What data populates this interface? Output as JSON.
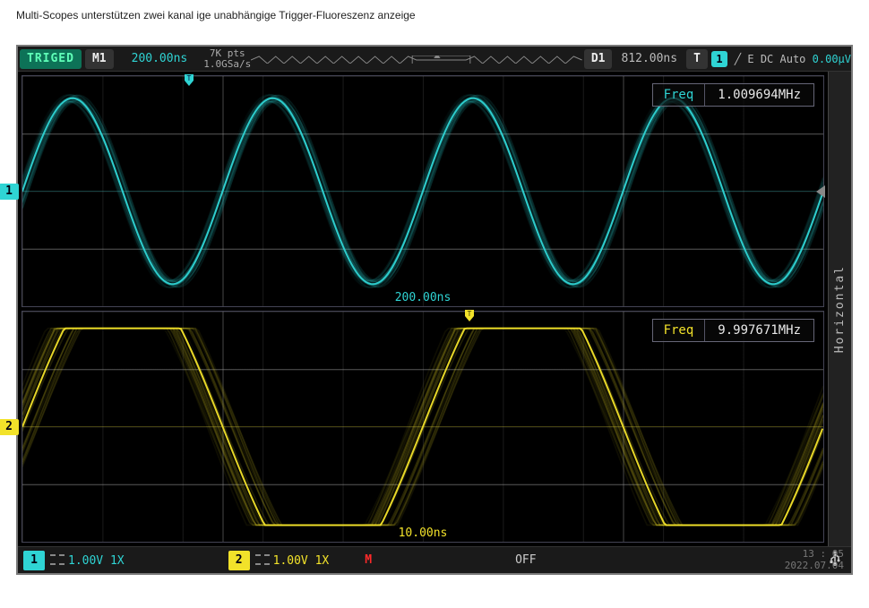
{
  "caption": "Multi-Scopes unterstützen zwei kanal ige unabhängige Trigger-Fluoreszenz anzeige",
  "topbar": {
    "status": "TRIGED",
    "mem_label": "M1",
    "timebase": "200.00ns",
    "acq_pts": "7K pts",
    "acq_rate": "1.0GSa/s",
    "delay_label": "D1",
    "delay_value": "812.00ns",
    "trig_T": "T",
    "trig_src_ch": "1",
    "trig_info": "╱ E DC Auto",
    "trig_level": "0.00µV"
  },
  "ch1": {
    "index": "1",
    "color": "#2fd4d4",
    "timebase_label": "200.00ns",
    "meas_key": "Freq",
    "meas_val": "1.009694MHz",
    "wave": {
      "type": "sine",
      "cycles": 4,
      "amplitude": 0.85,
      "phosphor_traces": 24,
      "jitter": 0.06
    }
  },
  "ch2": {
    "index": "2",
    "color": "#f2e22a",
    "timebase_label": "10.00ns",
    "meas_key": "Freq",
    "meas_val": "9.997671MHz",
    "wave": {
      "type": "clipped-sine",
      "cycles": 2,
      "amplitude": 0.9,
      "clip": 0.55,
      "phosphor_traces": 26,
      "jitter": 0.08
    }
  },
  "side_tab": "Horizontal",
  "bottombar": {
    "ch1_index": "1",
    "ch1_vdiv": "1.00V 1X",
    "ch2_index": "2",
    "ch2_vdiv": "1.00V 1X",
    "M": "M",
    "acq_mode": "OFF",
    "time": "13 : 05",
    "date": "2022.07.04"
  },
  "colors": {
    "bg": "#000000",
    "grid": "#4a4a52",
    "ch1": "#2fd4d4",
    "ch2": "#f2e22a",
    "status_bg": "#0d7257",
    "status_fg": "#5fffb8"
  }
}
